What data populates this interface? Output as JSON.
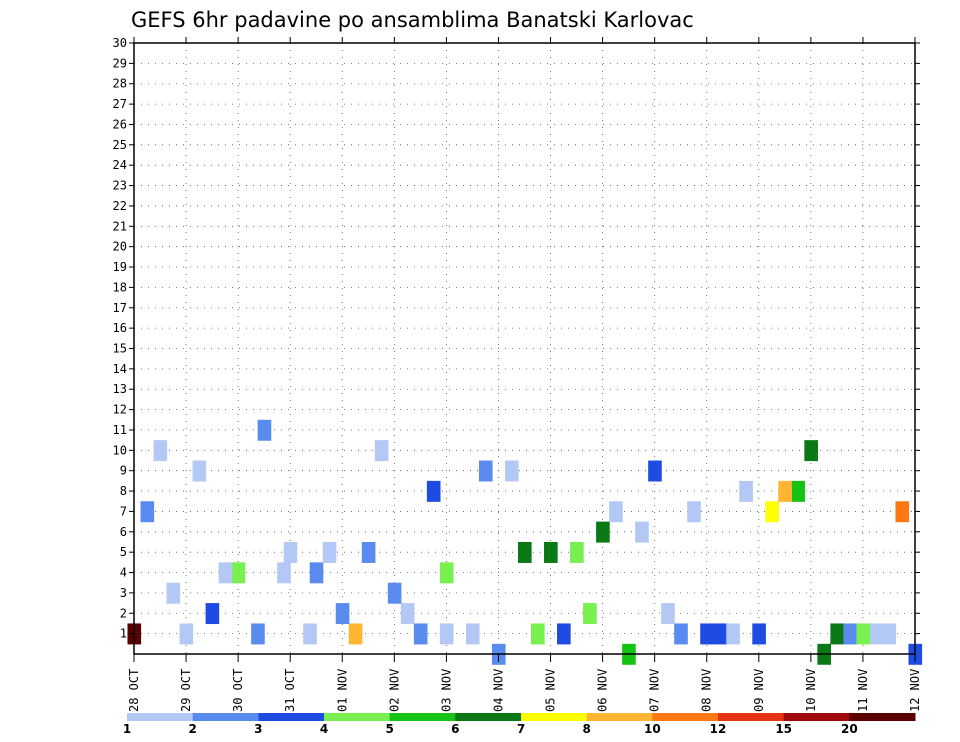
{
  "chart_data": {
    "type": "heatmap",
    "title": "GEFS 6hr padavine po ansamblima Banatski Karlovac",
    "xlabel": "",
    "ylabel": "",
    "x_tick_labels": [
      "28 OCT",
      "29 OCT",
      "30 OCT",
      "31 OCT",
      "01 NOV",
      "02 NOV",
      "03 NOV",
      "04 NOV",
      "05 NOV",
      "06 NOV",
      "07 NOV",
      "08 NOV",
      "09 NOV",
      "10 NOV",
      "11 NOV",
      "12 NOV"
    ],
    "y_tick_labels": [
      "1",
      "2",
      "3",
      "4",
      "5",
      "6",
      "7",
      "8",
      "9",
      "10",
      "11",
      "12",
      "13",
      "14",
      "15",
      "16",
      "17",
      "18",
      "19",
      "20",
      "21",
      "22",
      "23",
      "24",
      "25",
      "26",
      "27",
      "28",
      "29",
      "30"
    ],
    "xlim": [
      0,
      60
    ],
    "ylim": [
      0,
      30
    ],
    "grid": true,
    "colorbar": {
      "labels": [
        "1",
        "2",
        "3",
        "4",
        "5",
        "6",
        "7",
        "8",
        "10",
        "12",
        "15",
        "20"
      ],
      "colors": [
        "#b4c8f5",
        "#5a8cf0",
        "#1e4be1",
        "#78f050",
        "#14c314",
        "#0a7814",
        "#ffff00",
        "#ffb432",
        "#ff7814",
        "#e63214",
        "#a00a0a",
        "#5a0000"
      ]
    },
    "cells": [
      {
        "t": 28,
        "m": 0,
        "c": 1
      },
      {
        "t": 60,
        "m": 0,
        "c": 2
      },
      {
        "t": 53,
        "m": 0,
        "c": 5
      },
      {
        "t": 38,
        "m": 0,
        "c": 4
      },
      {
        "t": 13.5,
        "m": 1,
        "c": 0
      },
      {
        "t": 26,
        "m": 1,
        "c": 0
      },
      {
        "t": 24,
        "m": 1,
        "c": 0
      },
      {
        "t": 54,
        "m": 1,
        "c": 5
      },
      {
        "t": 0,
        "m": 1,
        "c": 11
      },
      {
        "t": 45,
        "m": 1,
        "c": 2
      },
      {
        "t": 44,
        "m": 1,
        "c": 2
      },
      {
        "t": 46,
        "m": 1,
        "c": 0
      },
      {
        "t": 58,
        "m": 1,
        "c": 0
      },
      {
        "t": 57,
        "m": 1,
        "c": 0
      },
      {
        "t": 22,
        "m": 1,
        "c": 1
      },
      {
        "t": 42,
        "m": 1,
        "c": 1
      },
      {
        "t": 4,
        "m": 1,
        "c": 0
      },
      {
        "t": 55,
        "m": 1,
        "c": 1
      },
      {
        "t": 56,
        "m": 1,
        "c": 3
      },
      {
        "t": 48,
        "m": 1,
        "c": 2
      },
      {
        "t": 31,
        "m": 1,
        "c": 3
      },
      {
        "t": 33,
        "m": 1,
        "c": 2
      },
      {
        "t": 17,
        "m": 1,
        "c": 7
      },
      {
        "t": 9.5,
        "m": 1,
        "c": 1
      },
      {
        "t": 16,
        "m": 2,
        "c": 1
      },
      {
        "t": 6,
        "m": 2,
        "c": 2
      },
      {
        "t": 35,
        "m": 2,
        "c": 3
      },
      {
        "t": 21,
        "m": 2,
        "c": 0
      },
      {
        "t": 41,
        "m": 2,
        "c": 0
      },
      {
        "t": 20,
        "m": 3,
        "c": 1
      },
      {
        "t": 3,
        "m": 3,
        "c": 0
      },
      {
        "t": 8,
        "m": 4,
        "c": 3
      },
      {
        "t": 7,
        "m": 4,
        "c": 0
      },
      {
        "t": 11.5,
        "m": 4,
        "c": 0
      },
      {
        "t": 24,
        "m": 4,
        "c": 3
      },
      {
        "t": 14,
        "m": 4,
        "c": 1
      },
      {
        "t": 15,
        "m": 5,
        "c": 0
      },
      {
        "t": 18,
        "m": 5,
        "c": 1
      },
      {
        "t": 12,
        "m": 5,
        "c": 0
      },
      {
        "t": 30,
        "m": 5,
        "c": 5
      },
      {
        "t": 34,
        "m": 5,
        "c": 3
      },
      {
        "t": 32,
        "m": 5,
        "c": 5
      },
      {
        "t": 36,
        "m": 6,
        "c": 5
      },
      {
        "t": 39,
        "m": 6,
        "c": 0
      },
      {
        "t": 59,
        "m": 7,
        "c": 8
      },
      {
        "t": 1,
        "m": 7,
        "c": 1
      },
      {
        "t": 49,
        "m": 7,
        "c": 6
      },
      {
        "t": 43,
        "m": 7,
        "c": 0
      },
      {
        "t": 37,
        "m": 7,
        "c": 0
      },
      {
        "t": 51,
        "m": 8,
        "c": 4
      },
      {
        "t": 50,
        "m": 8,
        "c": 7
      },
      {
        "t": 47,
        "m": 8,
        "c": 0
      },
      {
        "t": 23,
        "m": 8,
        "c": 2
      },
      {
        "t": 29,
        "m": 9,
        "c": 0
      },
      {
        "t": 27,
        "m": 9,
        "c": 1
      },
      {
        "t": 5,
        "m": 9,
        "c": 0
      },
      {
        "t": 40,
        "m": 9,
        "c": 2
      },
      {
        "t": 2,
        "m": 10,
        "c": 0
      },
      {
        "t": 19,
        "m": 10,
        "c": 0
      },
      {
        "t": 52,
        "m": 10,
        "c": 5
      },
      {
        "t": 10,
        "m": 11,
        "c": 1
      }
    ]
  }
}
